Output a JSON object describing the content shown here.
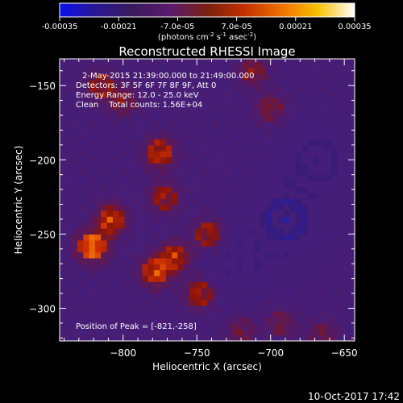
{
  "colorbar": {
    "ticks": [
      "-0.00035",
      "-0.00021",
      "-7.0e-05",
      "7.0e-05",
      "0.00021",
      "0.00035"
    ],
    "range": [
      -0.00035,
      0.00035
    ],
    "units_base": "(photons cm",
    "units_sup1": "-2",
    "units_mid1": " s",
    "units_sup2": "-1",
    "units_mid2": " asec",
    "units_sup3": "-2",
    "units_end": ")",
    "colors": [
      "#0a10f0",
      "#2a1890",
      "#3b1a5c",
      "#5a1a6e",
      "#7a2010",
      "#c03000",
      "#f07000",
      "#f8c000",
      "#ffffff"
    ]
  },
  "chart_data": {
    "type": "heatmap",
    "title": "Reconstructed RHESSI Image",
    "xlabel": "Heliocentric X (arcsec)",
    "ylabel": "Heliocentric Y (arcsec)",
    "xlim": [
      -843,
      -643
    ],
    "ylim": [
      -322,
      -132
    ],
    "xticks": [
      -800,
      -750,
      -700,
      -650
    ],
    "xtick_labels": [
      "−800",
      "−750",
      "−700",
      "−650"
    ],
    "yticks": [
      -300,
      -250,
      -200,
      -150
    ],
    "ytick_labels": [
      "−300",
      "−250",
      "−200",
      "−150"
    ],
    "annotations": [
      "2-May-2015 21:39:00.000 to 21:49:00.000",
      "Detectors: 3F 5F 6F 7F 8F 9F, Att 0",
      "Energy Range: 12.0 - 25.0 keV",
      "Clean    Total counts: 1.56E+04"
    ],
    "peak_label": "Position of Peak = [-821,-258]",
    "sources": [
      {
        "x": -821,
        "y": -258,
        "intensity": 1.0
      },
      {
        "x": -808,
        "y": -240,
        "intensity": 0.7
      },
      {
        "x": -778,
        "y": -275,
        "intensity": 0.75
      },
      {
        "x": -765,
        "y": -265,
        "intensity": 0.6
      },
      {
        "x": -748,
        "y": -290,
        "intensity": 0.55
      },
      {
        "x": -775,
        "y": -195,
        "intensity": 0.65
      },
      {
        "x": -772,
        "y": -225,
        "intensity": 0.5
      },
      {
        "x": -742,
        "y": -250,
        "intensity": 0.55
      },
      {
        "x": -815,
        "y": -150,
        "intensity": 0.45
      },
      {
        "x": -800,
        "y": -160,
        "intensity": 0.35
      },
      {
        "x": -712,
        "y": -140,
        "intensity": 0.4
      },
      {
        "x": -700,
        "y": -165,
        "intensity": 0.35
      },
      {
        "x": -693,
        "y": -310,
        "intensity": 0.3
      },
      {
        "x": -720,
        "y": -315,
        "intensity": 0.3
      },
      {
        "x": -665,
        "y": -318,
        "intensity": 0.3
      }
    ],
    "negative_regions": [
      {
        "x": -690,
        "y": -240,
        "intensity": 0.55
      },
      {
        "x": -668,
        "y": -200,
        "intensity": 0.35
      },
      {
        "x": -720,
        "y": -270,
        "intensity": 0.25
      }
    ]
  },
  "footer": {
    "timestamp": "10-Oct-2017 17:42"
  }
}
